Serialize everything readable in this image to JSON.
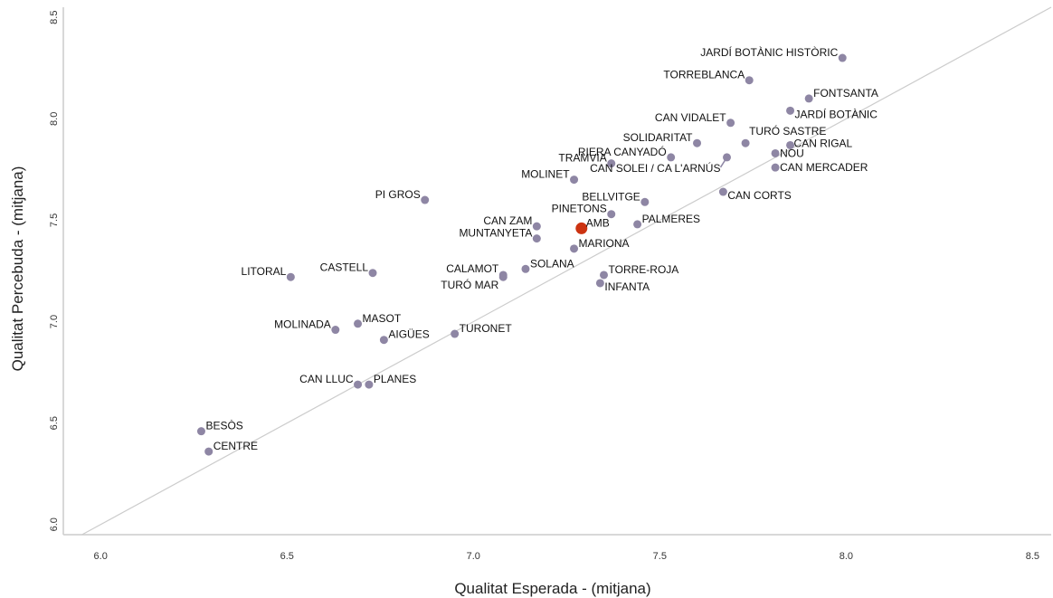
{
  "chart_data": {
    "type": "scatter",
    "xlabel": "Qualitat Esperada - (mitjana)",
    "ylabel": "Qualitat Percebuda - (mitjana)",
    "xlim": [
      5.9,
      8.55
    ],
    "ylim": [
      5.95,
      8.55
    ],
    "xticks": [
      "6.0",
      "6.5",
      "7.0",
      "7.5",
      "8.0",
      "8.5"
    ],
    "yticks": [
      "6.0",
      "6.5",
      "7.0",
      "7.5",
      "8.0",
      "8.5"
    ],
    "grid": false,
    "reference_line": "y = x",
    "colors": {
      "point": "#8e86a4",
      "highlight": "#cc3311",
      "line": "#cccccc",
      "frame": "#cccccc"
    },
    "points": [
      {
        "label": "JARDÍ BOTÀNIC HISTÒRIC",
        "x": 7.99,
        "y": 8.3
      },
      {
        "label": "TORREBLANCA",
        "x": 7.74,
        "y": 8.19
      },
      {
        "label": "FONTSANTA",
        "x": 7.9,
        "y": 8.1
      },
      {
        "label": "JARDÍ BOTÀNIC",
        "x": 7.85,
        "y": 8.04
      },
      {
        "label": "CAN VIDALET",
        "x": 7.69,
        "y": 7.98
      },
      {
        "label": "SOLIDARITAT",
        "x": 7.6,
        "y": 7.88
      },
      {
        "label": "TURÓ SASTRE",
        "x": 7.73,
        "y": 7.88
      },
      {
        "label": "CAN RIGAL",
        "x": 7.85,
        "y": 7.87
      },
      {
        "label": "RIERA CANYADÓ",
        "x": 7.53,
        "y": 7.81
      },
      {
        "label": "NOU",
        "x": 7.81,
        "y": 7.83
      },
      {
        "label": "TRAMVIA",
        "x": 7.37,
        "y": 7.78
      },
      {
        "label": "CAN MERCADER",
        "x": 7.81,
        "y": 7.76
      },
      {
        "label": "CAN SOLEI / CA L'ARNÚS",
        "x": 7.68,
        "y": 7.81
      },
      {
        "label": "MOLINET",
        "x": 7.27,
        "y": 7.7
      },
      {
        "label": "CAN CORTS",
        "x": 7.67,
        "y": 7.64
      },
      {
        "label": "PI GROS",
        "x": 6.87,
        "y": 7.6
      },
      {
        "label": "BELLVITGE",
        "x": 7.46,
        "y": 7.59
      },
      {
        "label": "PINETONS",
        "x": 7.37,
        "y": 7.53
      },
      {
        "label": "CAN ZAM",
        "x": 7.17,
        "y": 7.47
      },
      {
        "label": "AMB",
        "x": 7.29,
        "y": 7.46,
        "highlight": true
      },
      {
        "label": "PALMERES",
        "x": 7.44,
        "y": 7.48
      },
      {
        "label": "MUNTANYETA",
        "x": 7.17,
        "y": 7.41
      },
      {
        "label": "MARIONA",
        "x": 7.27,
        "y": 7.36
      },
      {
        "label": "LITORAL",
        "x": 6.51,
        "y": 7.22
      },
      {
        "label": "CASTELL",
        "x": 6.73,
        "y": 7.24
      },
      {
        "label": "CALAMOT",
        "x": 7.08,
        "y": 7.23
      },
      {
        "label": "SOLANA",
        "x": 7.14,
        "y": 7.26
      },
      {
        "label": "TURÓ MAR",
        "x": 7.08,
        "y": 7.22
      },
      {
        "label": "TORRE-ROJA",
        "x": 7.35,
        "y": 7.23
      },
      {
        "label": "INFANTA",
        "x": 7.34,
        "y": 7.19
      },
      {
        "label": "MASOT",
        "x": 6.69,
        "y": 6.99
      },
      {
        "label": "MOLINADA",
        "x": 6.63,
        "y": 6.96
      },
      {
        "label": "TURONET",
        "x": 6.95,
        "y": 6.94
      },
      {
        "label": "AIGÜES",
        "x": 6.76,
        "y": 6.91
      },
      {
        "label": "CAN LLUC",
        "x": 6.69,
        "y": 6.69
      },
      {
        "label": "PLANES",
        "x": 6.72,
        "y": 6.69
      },
      {
        "label": "BESÒS",
        "x": 6.27,
        "y": 6.46
      },
      {
        "label": "CENTRE",
        "x": 6.29,
        "y": 6.36
      }
    ]
  }
}
